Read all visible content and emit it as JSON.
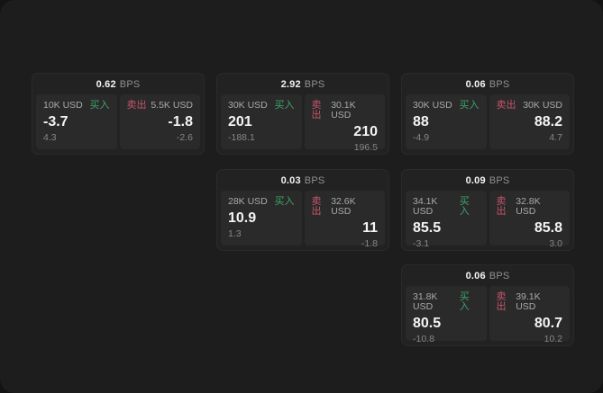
{
  "theme": {
    "page_bg": "#131314",
    "window_bg": "#1d1d1e",
    "card_bg": "#222223",
    "panel_bg": "#2a2a2b",
    "buy_color": "#3fa469",
    "sell_color": "#c6546a",
    "value_color": "#f4f4f4",
    "amount_color": "#a9a9ab",
    "muted_color": "#87878a"
  },
  "labels": {
    "bps_unit": "BPS",
    "buy": "买入",
    "sell": "卖出"
  },
  "cards": [
    {
      "bps": "0.62",
      "buy": {
        "amount": "10K USD",
        "value": "-3.7",
        "delta": "4.3"
      },
      "sell": {
        "amount": "5.5K USD",
        "value": "-1.8",
        "delta": "-2.6"
      }
    },
    {
      "bps": "2.92",
      "buy": {
        "amount": "30K USD",
        "value": "201",
        "delta": "-188.1"
      },
      "sell": {
        "amount": "30.1K USD",
        "value": "210",
        "delta": "196.5"
      }
    },
    {
      "bps": "0.06",
      "buy": {
        "amount": "30K USD",
        "value": "88",
        "delta": "-4.9"
      },
      "sell": {
        "amount": "30K USD",
        "value": "88.2",
        "delta": "4.7"
      }
    },
    {
      "bps": "0.03",
      "buy": {
        "amount": "28K USD",
        "value": "10.9",
        "delta": "1.3"
      },
      "sell": {
        "amount": "32.6K USD",
        "value": "11",
        "delta": "-1.8"
      }
    },
    {
      "bps": "0.09",
      "buy": {
        "amount": "34.1K USD",
        "value": "85.5",
        "delta": "-3.1"
      },
      "sell": {
        "amount": "32.8K USD",
        "value": "85.8",
        "delta": "3.0"
      }
    },
    {
      "bps": "0.06",
      "buy": {
        "amount": "31.8K USD",
        "value": "80.5",
        "delta": "-10.8"
      },
      "sell": {
        "amount": "39.1K USD",
        "value": "80.7",
        "delta": "10.2"
      }
    }
  ]
}
